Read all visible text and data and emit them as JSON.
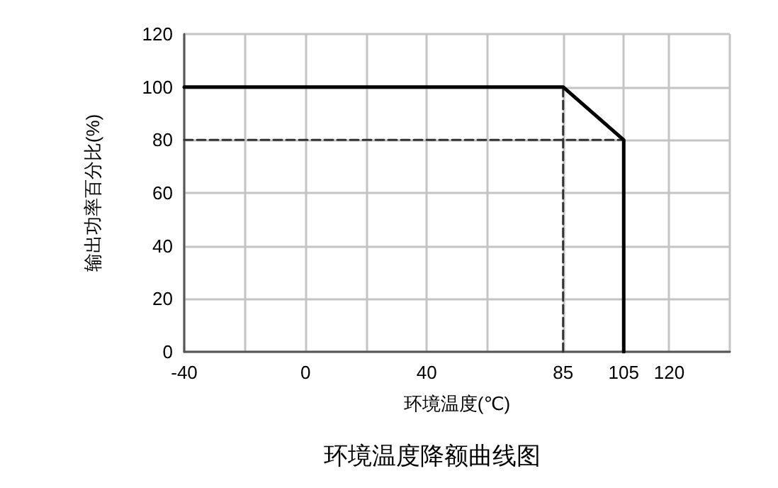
{
  "chart_data": {
    "type": "line",
    "title": "环境温度降额曲线图",
    "xlabel": "环境温度(℃)",
    "ylabel": "输出功率百分比(%)",
    "xlim": [
      -40,
      140
    ],
    "xticks": [
      -40,
      {
        "value": -20,
        "label": null
      },
      0,
      {
        "value": 20,
        "label": null
      },
      40,
      {
        "value": 60,
        "label": null
      },
      85,
      105,
      120,
      {
        "value": 140,
        "label": null
      }
    ],
    "ylim": [
      0,
      120
    ],
    "yticks": [
      0,
      20,
      40,
      60,
      80,
      100,
      120
    ],
    "grid": true,
    "marker": "none",
    "series": [
      {
        "color": "#000000",
        "line_style": "solid",
        "x": [
          -40,
          85,
          105,
          105
        ],
        "values": [
          100,
          100,
          80,
          0
        ]
      },
      {
        "color": "#333333",
        "line_style": "dashed",
        "x": [
          85,
          85
        ],
        "values": [
          0,
          100
        ]
      },
      {
        "color": "#333333",
        "line_style": "dashed",
        "x": [
          -40,
          105
        ],
        "values": [
          80,
          80
        ]
      }
    ]
  }
}
